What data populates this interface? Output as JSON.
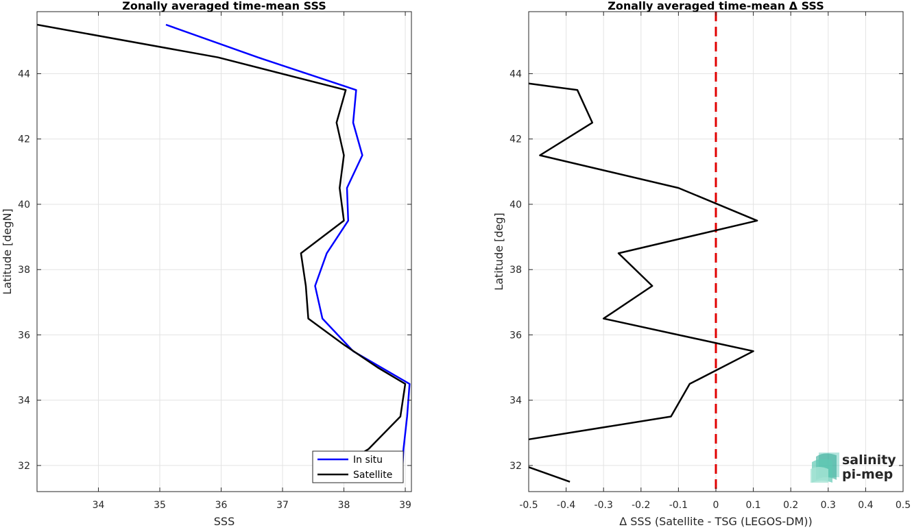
{
  "chart_data": [
    {
      "type": "line",
      "title": "Zonally averaged time-mean SSS",
      "xlabel": "SSS",
      "ylabel": "Latitude [degN]",
      "xlim": [
        33,
        39.1
      ],
      "ylim": [
        31.2,
        45.9
      ],
      "xticks": [
        34,
        35,
        36,
        37,
        38,
        39
      ],
      "yticks": [
        32,
        34,
        36,
        38,
        40,
        42,
        44
      ],
      "grid": true,
      "legend_placement": "bottom-right",
      "series": [
        {
          "name": "In situ",
          "color": "#0000ff",
          "points": [
            [
              35.1,
              45.5
            ],
            [
              36.6,
              44.5
            ],
            [
              38.2,
              43.5
            ],
            [
              38.15,
              42.5
            ],
            [
              38.3,
              41.5
            ],
            [
              38.05,
              40.5
            ],
            [
              38.07,
              39.5
            ],
            [
              37.72,
              38.5
            ],
            [
              37.53,
              37.5
            ],
            [
              37.65,
              36.5
            ],
            [
              38.15,
              35.5
            ],
            [
              39.07,
              34.5
            ],
            [
              39.03,
              33.5
            ],
            [
              38.97,
              32.5
            ],
            [
              38.95,
              31.8
            ]
          ]
        },
        {
          "name": "Satellite",
          "color": "#000000",
          "points": [
            [
              33.0,
              45.5
            ],
            [
              35.95,
              44.5
            ],
            [
              38.03,
              43.5
            ],
            [
              37.88,
              42.5
            ],
            [
              38.0,
              41.5
            ],
            [
              37.93,
              40.5
            ],
            [
              38.0,
              39.5
            ],
            [
              37.3,
              38.5
            ],
            [
              37.38,
              37.5
            ],
            [
              37.42,
              36.5
            ],
            [
              38.0,
              35.7
            ],
            [
              38.55,
              35.0
            ],
            [
              39.0,
              34.5
            ],
            [
              38.92,
              33.5
            ],
            [
              38.4,
              32.5
            ],
            [
              37.5,
              31.5
            ]
          ]
        }
      ]
    },
    {
      "type": "line",
      "title": "Zonally averaged time-mean Δ SSS",
      "xlabel": "Δ SSS (Satellite - TSG (LEGOS-DM))",
      "ylabel": "Latitude [deg]",
      "xlim": [
        -0.5,
        0.5
      ],
      "ylim": [
        31.2,
        45.9
      ],
      "xticks": [
        -0.5,
        -0.4,
        -0.3,
        -0.2,
        -0.1,
        0,
        0.1,
        0.2,
        0.3,
        0.4,
        0.5
      ],
      "yticks": [
        32,
        34,
        36,
        38,
        40,
        42,
        44
      ],
      "grid": true,
      "reference_line": {
        "x": 0,
        "color": "#e00000",
        "style": "dashed"
      },
      "series": [
        {
          "color": "#000000",
          "points": [
            [
              -0.5,
              43.7
            ],
            [
              -0.37,
              43.5
            ],
            [
              -0.33,
              42.5
            ],
            [
              -0.47,
              41.5
            ],
            [
              -0.1,
              40.5
            ],
            [
              0.11,
              39.5
            ],
            [
              -0.26,
              38.5
            ],
            [
              -0.17,
              37.5
            ],
            [
              -0.3,
              36.5
            ],
            [
              0.1,
              35.5
            ],
            [
              -0.07,
              34.5
            ],
            [
              -0.12,
              33.5
            ],
            [
              -0.5,
              32.8
            ]
          ]
        },
        {
          "color": "#000000",
          "points": [
            [
              -0.5,
              31.95
            ],
            [
              -0.39,
              31.5
            ]
          ]
        }
      ]
    }
  ],
  "logo": {
    "line1": "salinity",
    "line2": "pi-mep",
    "color": "#1a9c8c"
  }
}
